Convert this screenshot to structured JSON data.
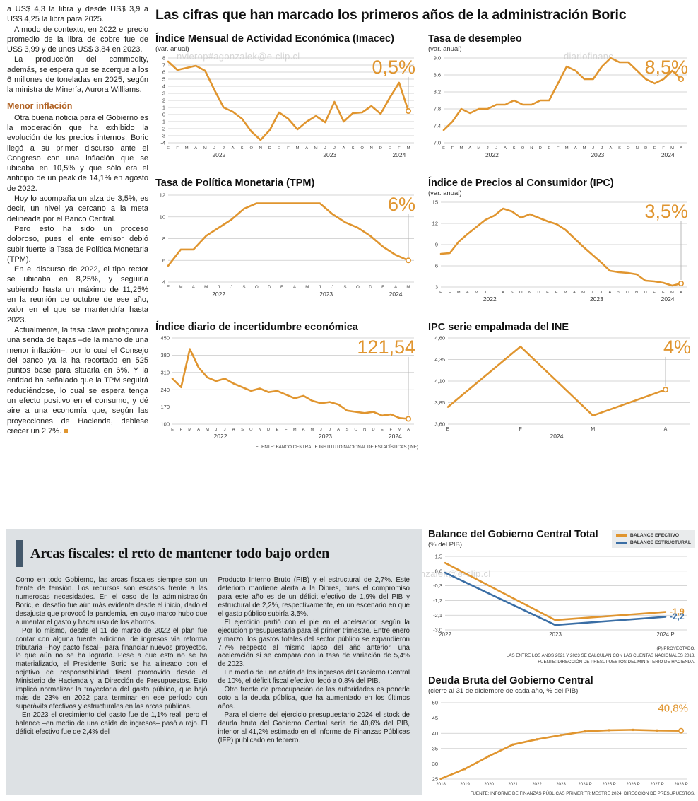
{
  "page": {
    "main_title": "Las cifras que han marcado los primeros años de la administración Boric",
    "watermark_top": "nvierop#agonzalek@e-clip.cl",
    "watermark_top_right": "diariofinanc",
    "watermark_bottom": "ero#agonzalek@e-clip.cl"
  },
  "colors": {
    "accent_orange": "#E0952F",
    "line_blue": "#3A6EA5",
    "box_gray": "#dde1e4",
    "accent_bar": "#44586B",
    "subhead_brown": "#B06020"
  },
  "left_article": {
    "intro_paragraphs": [
      "a US$ 4,3 la libra y desde US$ 3,9 a US$ 4,25 la libra para 2025.",
      "A modo de contexto, en 2022 el precio promedio de la libra de cobre fue de US$ 3,99 y de unos US$ 3,84 en 2023.",
      "La producción del commodity, además, se espera que se acerque a los 6 millones de toneladas en 2025, según la ministra de Minería, Aurora Williams."
    ],
    "subhead": "Menor inflación",
    "inflation_paragraphs": [
      "Otra buena noticia para el Gobierno es la moderación que ha exhibido la evolución de los precios internos. Boric llegó a su primer discurso ante el Congreso con una inflación que se ubicaba en 10,5% y que sólo era el anticipo de un peak de 14,1% en agosto de 2022.",
      "Hoy lo acompaña un alza de 3,5%, es decir, un nivel ya cercano a la meta delineada por el Banco Central.",
      "Pero esto ha sido un proceso doloroso, pues el ente emisor debió subir fuerte la Tasa de Política Monetaria (TPM).",
      "En el discurso de 2022, el tipo rector se ubicaba en 8,25%, y seguiría subiendo hasta un máximo de 11,25% en la reunión de octubre de ese año, valor en el que se mantendría hasta 2023.",
      "Actualmente, la tasa clave protagoniza una senda de bajas –de la mano de una menor inflación–, por lo cual el Consejo del banco ya la ha recortado en 525 puntos base para situarla en 6%. Y la entidad ha señalado que la TPM seguirá reduciéndose, lo cual se espera tenga un efecto positivo en el consumo, y dé aire a una economía que, según las proyecciones de Hacienda, debiese crecer un 2,7%."
    ]
  },
  "bottom_article": {
    "title": "Arcas fiscales: el reto de mantener todo bajo orden",
    "col1_paragraphs": [
      "Como en todo Gobierno, las arcas fiscales siempre son un frente de tensión. Los recursos son escasos frente a las numerosas necesidades. En el caso de la administración Boric, el desafío fue aún más evidente desde el inicio, dado el desajuste que provocó la pandemia, en cuyo marco hubo que aumentar el gasto y hacer uso de los ahorros.",
      "Por lo mismo, desde el 11 de marzo de 2022 el plan fue contar con alguna fuente adicional de ingresos vía reforma tributaria –hoy pacto fiscal– para financiar nuevos proyectos, lo que aún no se ha logrado. Pese a que esto no se ha materializado, el Presidente Boric se ha alineado con el objetivo de responsabilidad fiscal promovido desde el Ministerio de Hacienda y la Dirección de Presupuestos. Esto implicó normalizar la trayectoria del gasto público, que bajó más de 23% en 2022 para terminar en ese período con superávits efectivos y estructurales en las arcas públicas.",
      "En 2023 el crecimiento del gasto fue de 1,1% real, pero el balance –en medio de una caída de ingresos– pasó a rojo. El déficit efectivo fue de 2,4% del"
    ],
    "col2_paragraphs": [
      "Producto Interno Bruto (PIB) y el estructural de 2,7%. Este deterioro mantiene alerta a la Dipres, pues el compromiso para este año es de un déficit efectivo de 1,9% del PIB y estructural de 2,2%, respectivamente, en un escenario en que el gasto público subiría 3,5%.",
      "El ejercicio partió con el pie en el acelerador, según la ejecución presupuestaria para el primer trimestre. Entre enero y marzo, los gastos totales del sector público se expandieron 7,7% respecto al mismo lapso del año anterior, una aceleración si se compara con la tasa de variación de 5,4% de 2023.",
      "En medio de una caída de los ingresos del Gobierno Central de 10%, el déficit fiscal efectivo llegó a 0,8% del PIB.",
      "Otro frente de preocupación de las autoridades es ponerle coto a la deuda pública, que ha aumentado en los últimos años.",
      "Para el cierre del ejercicio presupuestario 2024 el stock de deuda bruta del Gobierno Central sería de 40,6% del PIB, inferior al 41,2% estimado en el Informe de Finanzas Públicas (IFP) publicado en febrero."
    ]
  },
  "chart_data": [
    {
      "id": "imacec",
      "type": "line",
      "title": "Índice Mensual de Actividad Económica (Imacec)",
      "subtitle": "(var. anual)",
      "callout": "0,5%",
      "callout_color": "#E0952F",
      "ylim": [
        -4,
        8
      ],
      "yticks": [
        8,
        7,
        6,
        5,
        4,
        3,
        2,
        1,
        0,
        -1,
        -2,
        -3,
        -4
      ],
      "ytick_labels": [
        "8",
        "7",
        "6",
        "5",
        "4",
        "3",
        "2",
        "1",
        "0",
        "-1",
        "-2",
        "-3",
        "-4"
      ],
      "categories": [
        "E",
        "F",
        "M",
        "A",
        "M",
        "J",
        "J",
        "A",
        "S",
        "O",
        "N",
        "D",
        "E",
        "F",
        "M",
        "A",
        "M",
        "J",
        "J",
        "A",
        "S",
        "O",
        "N",
        "D",
        "E",
        "F",
        "M"
      ],
      "years": [
        {
          "label": "2022",
          "from": 0,
          "to": 11
        },
        {
          "label": "2023",
          "from": 12,
          "to": 23
        },
        {
          "label": "2024",
          "from": 24,
          "to": 26
        }
      ],
      "series": [
        {
          "name": "Imacec",
          "color": "#E0952F",
          "values": [
            7.5,
            6.3,
            6.6,
            6.9,
            6.2,
            3.5,
            1.0,
            0.4,
            -0.6,
            -2.4,
            -3.6,
            -2.2,
            0.3,
            -0.6,
            -2.1,
            -1.0,
            -0.2,
            -1.1,
            1.8,
            -1.0,
            0.2,
            0.3,
            1.2,
            0.1,
            2.4,
            4.5,
            0.5
          ]
        }
      ]
    },
    {
      "id": "desempleo",
      "type": "line",
      "title": "Tasa de desempleo",
      "subtitle": "(var. anual)",
      "callout": "8,5%",
      "callout_color": "#E0952F",
      "ylim": [
        7.0,
        9.0
      ],
      "yticks": [
        9.0,
        8.6,
        8.2,
        7.8,
        7.4,
        7.0
      ],
      "ytick_labels": [
        "9,0",
        "8,6",
        "8,2",
        "7,8",
        "7,4",
        "7,0"
      ],
      "categories": [
        "E",
        "F",
        "M",
        "A",
        "M",
        "J",
        "J",
        "A",
        "S",
        "O",
        "N",
        "D",
        "E",
        "F",
        "M",
        "A",
        "M",
        "J",
        "J",
        "A",
        "S",
        "O",
        "N",
        "D",
        "E",
        "F",
        "M",
        "A"
      ],
      "years": [
        {
          "label": "2022",
          "from": 0,
          "to": 11
        },
        {
          "label": "2023",
          "from": 12,
          "to": 23
        },
        {
          "label": "2024",
          "from": 24,
          "to": 27
        }
      ],
      "series": [
        {
          "name": "Tasa de desempleo",
          "color": "#E0952F",
          "values": [
            7.3,
            7.5,
            7.8,
            7.7,
            7.8,
            7.8,
            7.9,
            7.9,
            8.0,
            7.9,
            7.9,
            8.0,
            8.0,
            8.4,
            8.8,
            8.7,
            8.5,
            8.5,
            8.8,
            9.0,
            8.9,
            8.9,
            8.7,
            8.5,
            8.4,
            8.5,
            8.7,
            8.5
          ]
        }
      ]
    },
    {
      "id": "tpm",
      "type": "line",
      "title": "Tasa de Política Monetaria (TPM)",
      "subtitle": "",
      "callout": "6%",
      "callout_color": "#E0952F",
      "ylim": [
        4,
        12
      ],
      "yticks": [
        12,
        10,
        8,
        6,
        4
      ],
      "ytick_labels": [
        "12",
        "10",
        "8",
        "6",
        "4"
      ],
      "categories": [
        "E",
        "M",
        "A",
        "M",
        "J",
        "J",
        "S",
        "O",
        "D",
        "E",
        "A",
        "M",
        "J",
        "J",
        "S",
        "O",
        "D",
        "E",
        "A",
        "M"
      ],
      "years": [
        {
          "label": "2022",
          "from": 0,
          "to": 8
        },
        {
          "label": "2023",
          "from": 9,
          "to": 16
        },
        {
          "label": "2024",
          "from": 17,
          "to": 19
        }
      ],
      "series": [
        {
          "name": "TPM",
          "color": "#E0952F",
          "values": [
            5.5,
            7.0,
            7.0,
            8.25,
            9.0,
            9.75,
            10.75,
            11.25,
            11.25,
            11.25,
            11.25,
            11.25,
            11.25,
            10.25,
            9.5,
            9.0,
            8.25,
            7.25,
            6.5,
            6.0
          ]
        }
      ]
    },
    {
      "id": "ipc",
      "type": "line",
      "title": "Índice de Precios al Consumidor (IPC)",
      "subtitle": "(var. anual)",
      "callout": "3,5%",
      "callout_color": "#E0952F",
      "ylim": [
        3,
        15
      ],
      "yticks": [
        15,
        12,
        9,
        6,
        3
      ],
      "ytick_labels": [
        "15",
        "12",
        "9",
        "6",
        "3"
      ],
      "categories": [
        "E",
        "F",
        "M",
        "A",
        "M",
        "J",
        "J",
        "A",
        "S",
        "O",
        "N",
        "D",
        "E",
        "F",
        "M",
        "A",
        "M",
        "J",
        "J",
        "A",
        "S",
        "O",
        "N",
        "D",
        "E",
        "F",
        "M",
        "A"
      ],
      "years": [
        {
          "label": "2022",
          "from": 0,
          "to": 11
        },
        {
          "label": "2023",
          "from": 12,
          "to": 23
        },
        {
          "label": "2024",
          "from": 24,
          "to": 27
        }
      ],
      "series": [
        {
          "name": "IPC var. anual",
          "color": "#E0952F",
          "values": [
            7.7,
            7.8,
            9.4,
            10.5,
            11.5,
            12.5,
            13.1,
            14.1,
            13.7,
            12.8,
            13.3,
            12.8,
            12.3,
            11.9,
            11.1,
            9.9,
            8.7,
            7.6,
            6.5,
            5.3,
            5.1,
            5.0,
            4.8,
            3.9,
            3.8,
            3.6,
            3.2,
            3.5
          ]
        }
      ]
    },
    {
      "id": "incertidumbre",
      "type": "line",
      "title": "Índice diario de incertidumbre económica",
      "subtitle": "",
      "callout": "121,54",
      "callout_color": "#E0952F",
      "ylim": [
        100,
        450
      ],
      "yticks": [
        450,
        380,
        310,
        240,
        170,
        100
      ],
      "ytick_labels": [
        "450",
        "380",
        "310",
        "240",
        "170",
        "100"
      ],
      "categories": [
        "E",
        "F",
        "M",
        "A",
        "M",
        "J",
        "J",
        "A",
        "S",
        "O",
        "N",
        "D",
        "E",
        "F",
        "M",
        "A",
        "M",
        "J",
        "J",
        "A",
        "S",
        "O",
        "N",
        "D",
        "E",
        "F",
        "M",
        "A"
      ],
      "years": [
        {
          "label": "2022",
          "from": 0,
          "to": 11
        },
        {
          "label": "2023",
          "from": 12,
          "to": 23
        },
        {
          "label": "2024",
          "from": 24,
          "to": 27
        }
      ],
      "source": "FUENTE: BANCO CENTRAL E INSTITUTO NACIONAL DE ESTADÍSTICAS (INE)",
      "series": [
        {
          "name": "Incertidumbre económica",
          "color": "#E0952F",
          "values": [
            285,
            250,
            405,
            330,
            290,
            275,
            285,
            265,
            250,
            235,
            245,
            230,
            235,
            220,
            205,
            215,
            195,
            185,
            190,
            180,
            155,
            150,
            145,
            150,
            135,
            140,
            125,
            121.54
          ]
        }
      ]
    },
    {
      "id": "ipc_ine",
      "type": "line",
      "title": "IPC serie empalmada del INE",
      "subtitle": "",
      "callout": "4%",
      "callout_color": "#E0952F",
      "ylim": [
        3.6,
        4.6
      ],
      "yticks": [
        4.6,
        4.35,
        4.1,
        3.85,
        3.6
      ],
      "ytick_labels": [
        "4,60",
        "4,35",
        "4,10",
        "3,85",
        "3,60"
      ],
      "categories": [
        "E",
        "F",
        "M",
        "A"
      ],
      "years": [
        {
          "label": "2024",
          "from": 0,
          "to": 3
        }
      ],
      "series": [
        {
          "name": "IPC empalmado",
          "color": "#E0952F",
          "values": [
            3.8,
            4.5,
            3.7,
            4.0
          ]
        }
      ]
    },
    {
      "id": "balance",
      "type": "line",
      "title": "Balance del Gobierno Central Total",
      "subtitle": "(% del PIB)",
      "legend": [
        {
          "label": "BALANCE EFECTIVO",
          "color": "#E0952F"
        },
        {
          "label": "BALANCE ESTRUCTURAL",
          "color": "#3A6EA5"
        }
      ],
      "ylim": [
        -3.0,
        1.5
      ],
      "yticks": [
        1.5,
        0.6,
        -0.3,
        -1.2,
        -2.1,
        -3.0
      ],
      "ytick_labels": [
        "1,5",
        "0,6",
        "-0,3",
        "-1,2",
        "-2,1",
        "-3,0"
      ],
      "categories": [
        "2022",
        "2023",
        "2024 P"
      ],
      "end_labels": [
        {
          "text": "-1,9",
          "color": "#E0952F"
        },
        {
          "text": "-2,2",
          "color": "#3A6EA5"
        }
      ],
      "footnotes": [
        "(P) PROYECTADO.",
        "LAS ENTRE LOS AÑOS 2021 Y 2023 SE CALCULAN CON LAS CUENTAS NACIONALES 2018.",
        "FUENTE: DIRECCIÓN DE PRESUPUESTOS DEL MINISTERIO DE HACIENDA."
      ],
      "series": [
        {
          "name": "Balance efectivo",
          "color": "#E0952F",
          "values": [
            1.1,
            -2.4,
            -1.9
          ]
        },
        {
          "name": "Balance estructural",
          "color": "#3A6EA5",
          "values": [
            0.5,
            -2.7,
            -2.2
          ]
        }
      ]
    },
    {
      "id": "deuda",
      "type": "line",
      "title": "Deuda Bruta del Gobierno Central",
      "subtitle": "(cierre al 31 de diciembre de cada año, % del PIB)",
      "callout": "40,8%",
      "callout_color": "#E0952F",
      "ylim": [
        25,
        50
      ],
      "yticks": [
        50,
        45,
        40,
        35,
        30,
        25
      ],
      "ytick_labels": [
        "50",
        "45",
        "40",
        "35",
        "30",
        "25"
      ],
      "categories": [
        "2018",
        "2019",
        "2020",
        "2021",
        "2022",
        "2023",
        "2024 P",
        "2025 P",
        "2026 P",
        "2027 P",
        "2028 P"
      ],
      "source": "FUENTE: INFORME DE FINANZAS PÚBLICAS PRIMER TRIMESTRE 2024, DIRECCIÓN DE PRESUPUESTOS.",
      "series": [
        {
          "name": "Deuda bruta",
          "color": "#E0952F",
          "values": [
            25.1,
            28.3,
            32.5,
            36.3,
            38.0,
            39.4,
            40.6,
            41.0,
            41.1,
            40.9,
            40.8
          ]
        }
      ]
    }
  ]
}
